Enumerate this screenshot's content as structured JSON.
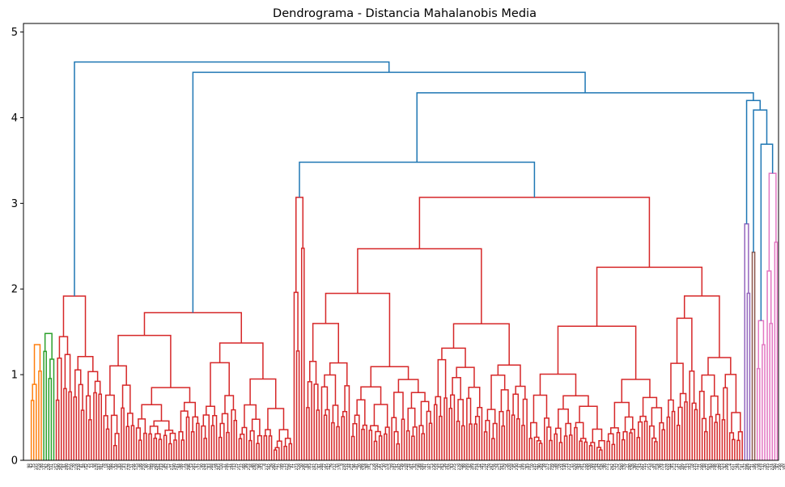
{
  "chart_data": {
    "type": "dendrogram",
    "title": "Dendrograma - Distancia Mahalanobis Media",
    "ylabel": "",
    "xlabel": "",
    "ylim": [
      0,
      5.1
    ],
    "yticks": [
      0,
      1,
      2,
      3,
      4,
      5
    ],
    "grid": false,
    "legend": "none",
    "n_leaves": 300,
    "colors": {
      "above_threshold": "#1f77b4",
      "orange": "#ff7f0e",
      "green": "#2ca02c",
      "red": "#d62728",
      "purple": "#9467bd",
      "brown": "#8c564b",
      "pink": "#e377c2",
      "axis": "#000000"
    },
    "top_merges": [
      {
        "height": 4.87,
        "left": [
          0,
          11
        ],
        "right": [
          11,
          300
        ]
      },
      {
        "height": 4.65,
        "left": [
          11,
          30
        ],
        "right": [
          30,
          300
        ]
      },
      {
        "height": 4.53,
        "left": [
          30,
          106
        ],
        "right": [
          106,
          300
        ]
      },
      {
        "height": 4.29,
        "left": [
          106,
          286
        ],
        "right": [
          286,
          300
        ]
      },
      {
        "height": 4.2,
        "left": [
          286,
          289
        ],
        "right": [
          289,
          300
        ]
      },
      {
        "height": 4.09,
        "left": [
          289,
          291
        ],
        "right": [
          291,
          300
        ]
      },
      {
        "height": 3.69,
        "left": [
          291,
          295
        ],
        "right": [
          295,
          300
        ]
      },
      {
        "height": 3.64,
        "left": [
          0,
          1
        ],
        "right": [
          1,
          11
        ]
      },
      {
        "height": 3.48,
        "left": [
          106,
          111
        ],
        "right": [
          111,
          286
        ]
      }
    ],
    "clusters": [
      {
        "range": [
          1,
          6
        ],
        "color": "orange",
        "height": 1.35
      },
      {
        "range": [
          6,
          11
        ],
        "color": "green",
        "height": 1.48
      },
      {
        "range": [
          11,
          30
        ],
        "color": "blue",
        "height": 0.0
      },
      {
        "range": [
          30,
          106
        ],
        "color": "blue",
        "height": 0.0
      },
      {
        "range": [
          106,
          111
        ],
        "color": "red",
        "height": 3.07
      },
      {
        "range": [
          111,
          286
        ],
        "color": "red",
        "height": 3.07
      },
      {
        "range": [
          286,
          289
        ],
        "color": "purple",
        "height": 2.76
      },
      {
        "range": [
          289,
          291
        ],
        "color": "brown",
        "height": 2.43
      },
      {
        "range": [
          291,
          295
        ],
        "color": "pink",
        "height": 1.63
      },
      {
        "range": [
          295,
          300
        ],
        "color": "pink",
        "height": 3.35
      }
    ],
    "leaf_labels": [
      "98",
      "93",
      "75",
      "145",
      "219",
      "88",
      "137",
      "62",
      "226",
      "131",
      "15",
      "252",
      "190",
      "264",
      "91",
      "200",
      "127",
      "210",
      "70",
      "116",
      "238",
      "81",
      "48",
      "152",
      "25",
      "33",
      "58",
      "229",
      "143",
      "101",
      "78",
      "18",
      "282",
      "198",
      "67",
      "138",
      "95",
      "208",
      "43",
      "112",
      "278",
      "51",
      "256",
      "175",
      "38",
      "149",
      "216",
      "60",
      "121",
      "189",
      "28",
      "294",
      "104",
      "233",
      "86",
      "162",
      "12",
      "271",
      "140",
      "247",
      "64",
      "186",
      "31",
      "118",
      "296",
      "53",
      "205",
      "97",
      "177",
      "40",
      "244",
      "125",
      "83",
      "268",
      "14",
      "159",
      "203",
      "110",
      "57",
      "286",
      "37",
      "194",
      "133",
      "75",
      "251",
      "22",
      "168",
      "89",
      "214",
      "46",
      "290",
      "119",
      "66",
      "183",
      "8",
      "237",
      "102",
      "29",
      "260",
      "147",
      "72",
      "199",
      "35",
      "223",
      "156",
      "91",
      "11",
      "273",
      "129",
      "50",
      "206",
      "84",
      "165",
      "17",
      "242",
      "113",
      "61",
      "288",
      "27",
      "195",
      "142",
      "79",
      "232",
      "55",
      "170",
      "9",
      "258",
      "134",
      "44",
      "211",
      "96",
      "181",
      "20",
      "266",
      "124",
      "68",
      "191",
      "3",
      "229",
      "150",
      "87",
      "255",
      "30",
      "174",
      "115",
      "59",
      "283",
      "41",
      "202",
      "139",
      "76",
      "248",
      "24",
      "161",
      "92",
      "218",
      "49",
      "298",
      "107",
      "71",
      "187",
      "13",
      "236",
      "154",
      "82",
      "263",
      "36",
      "197",
      "128",
      "63",
      "225",
      "5",
      "279",
      "146",
      "99",
      "209",
      "42",
      "169",
      "117",
      "254",
      "32",
      "185",
      "74",
      "241",
      "19",
      "292",
      "136",
      "54",
      "213",
      "103",
      "179",
      "26",
      "270",
      "158",
      "85",
      "230",
      "47",
      "196",
      "122",
      "65",
      "287",
      "10",
      "245",
      "141",
      "90",
      "204",
      "39",
      "173",
      "111",
      "259",
      "56",
      "188",
      "16",
      "234",
      "130",
      "73",
      "277",
      "45",
      "220",
      "164",
      "94",
      "201",
      "23",
      "249",
      "120",
      "69",
      "284",
      "34",
      "192",
      "148",
      "80",
      "227",
      "7",
      "262",
      "135",
      "52",
      "215",
      "100",
      "176",
      "21",
      "240",
      "126",
      "60",
      "297",
      "43",
      "207",
      "155",
      "77",
      "253",
      "28",
      "182",
      "114",
      "66",
      "274",
      "11",
      "228",
      "144",
      "95",
      "212",
      "37",
      "167",
      "109",
      "261",
      "53",
      "193",
      "18",
      "235",
      "132",
      "71",
      "280",
      "48",
      "222",
      "163",
      "88",
      "246",
      "25",
      "199",
      "123",
      "62",
      "289",
      "4",
      "257",
      "151",
      "84",
      "217",
      "41",
      "172",
      "106",
      "267",
      "31",
      "186",
      "14",
      "239",
      "137",
      "70",
      "285",
      "57",
      "224",
      "160",
      "97",
      "250",
      "20",
      "204",
      "119",
      "63",
      "291",
      "1",
      "265",
      "153",
      "82",
      "221",
      "212",
      "272",
      "299",
      "2",
      "245",
      "281",
      "259"
    ]
  }
}
